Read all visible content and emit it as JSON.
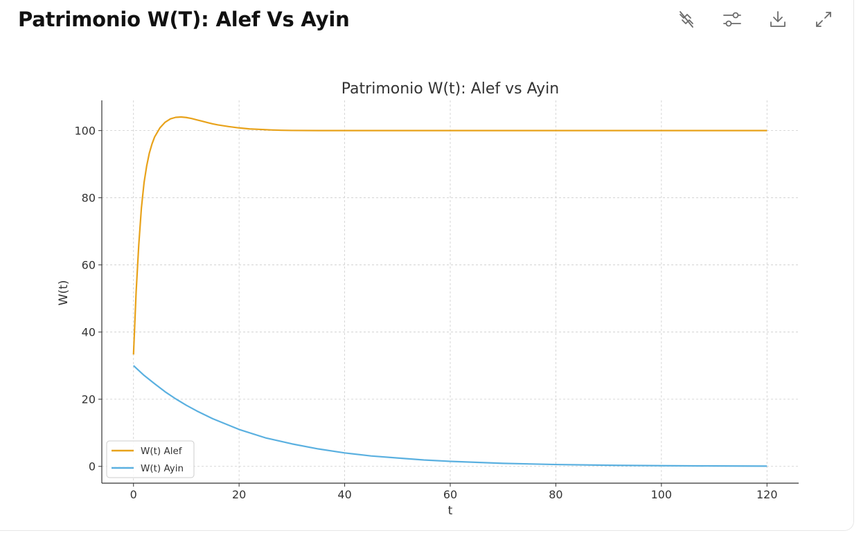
{
  "header": {
    "title": "Patrimonio W(T): Alef Vs Ayin"
  },
  "toolbar": {
    "icons": [
      "hide-code-icon",
      "chart-settings-icon",
      "download-icon",
      "expand-icon"
    ]
  },
  "colors": {
    "alef": "#e8a21a",
    "ayin": "#5ab0e0",
    "grid": "#cccccc",
    "axis": "#333333"
  },
  "chart_data": {
    "type": "line",
    "title": "Patrimonio W(t): Alef vs Ayin",
    "xlabel": "t",
    "ylabel": "W(t)",
    "xlim": [
      -6,
      126
    ],
    "ylim": [
      -5,
      109
    ],
    "xticks": [
      0,
      20,
      40,
      60,
      80,
      100,
      120
    ],
    "yticks": [
      0,
      20,
      40,
      60,
      80,
      100
    ],
    "grid": true,
    "legend_position": "lower-left",
    "series": [
      {
        "name": "W(t) Alef",
        "color": "#e8a21a",
        "x": [
          0,
          0.5,
          1,
          1.5,
          2,
          2.5,
          3,
          3.5,
          4,
          5,
          6,
          7,
          8,
          9,
          10,
          11,
          12,
          13,
          14,
          15,
          16,
          18,
          20,
          22,
          24,
          26,
          28,
          30,
          35,
          40,
          50,
          60,
          80,
          100,
          120
        ],
        "y": [
          33.3,
          52,
          66,
          77,
          84.5,
          89.5,
          93.3,
          96,
          98.1,
          100.8,
          102.5,
          103.5,
          103.95,
          104.05,
          103.9,
          103.6,
          103.2,
          102.8,
          102.4,
          102.0,
          101.7,
          101.2,
          100.8,
          100.5,
          100.35,
          100.2,
          100.1,
          100.05,
          100.0,
          100.0,
          100.0,
          100.0,
          100.0,
          100.0,
          100.0
        ]
      },
      {
        "name": "W(t) Ayin",
        "color": "#5ab0e0",
        "x": [
          0,
          2,
          4,
          6,
          8,
          10,
          12,
          15,
          20,
          25,
          30,
          35,
          40,
          45,
          50,
          55,
          60,
          70,
          80,
          90,
          100,
          110,
          120
        ],
        "y": [
          30,
          27.1,
          24.6,
          22.2,
          20.1,
          18.2,
          16.5,
          14.2,
          11.0,
          8.5,
          6.7,
          5.2,
          4.0,
          3.1,
          2.5,
          1.9,
          1.5,
          0.9,
          0.55,
          0.33,
          0.2,
          0.12,
          0.07
        ]
      }
    ]
  }
}
